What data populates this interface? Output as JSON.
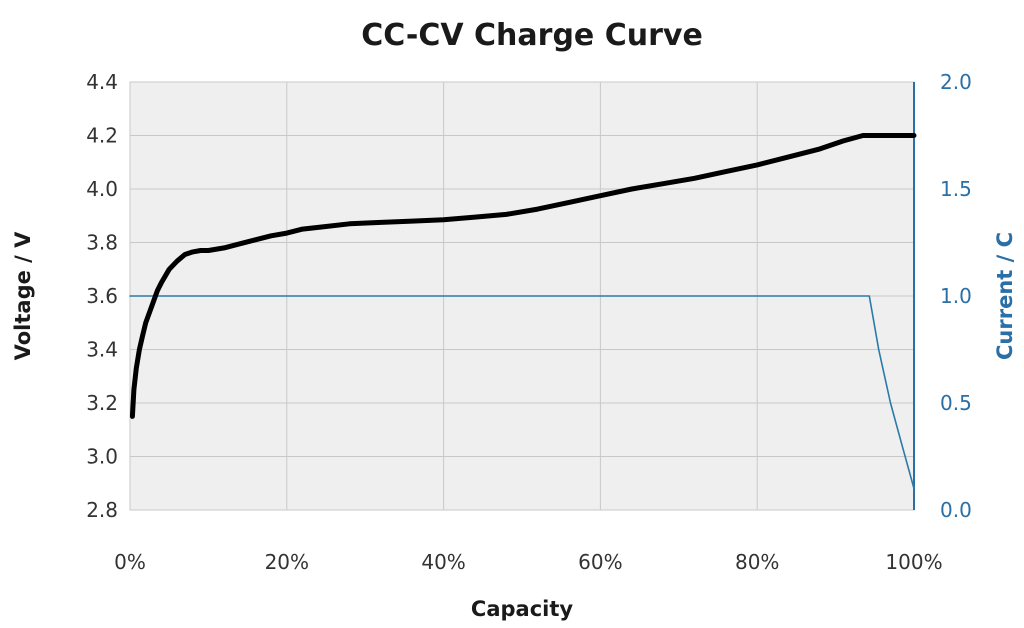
{
  "chart_data": {
    "type": "line",
    "title": "CC-CV Charge Curve",
    "xlabel": "Capacity",
    "ylabel": "Voltage / V",
    "y2label": "Current / C",
    "x_ticks": [
      "0%",
      "20%",
      "40%",
      "60%",
      "80%",
      "100%"
    ],
    "y_ticks": [
      "2.8",
      "3.0",
      "3.2",
      "3.4",
      "3.6",
      "3.8",
      "4.0",
      "4.2",
      "4.4"
    ],
    "y2_ticks": [
      "0.0",
      "0.5",
      "1.0",
      "1.5",
      "2.0"
    ],
    "xlim": [
      0,
      100
    ],
    "ylim": [
      2.8,
      4.4
    ],
    "y2lim": [
      0,
      2.0
    ],
    "grid": true,
    "colors": {
      "voltage": "#000000",
      "current": "#2a7aa8",
      "plot_bg": "#efefef",
      "grid": "#c8c8c8",
      "right_axis": "#2a6fa6"
    },
    "series": [
      {
        "axis": "left",
        "x": [
          0.3,
          0.5,
          0.8,
          1.2,
          1.6,
          2.0,
          2.5,
          3.0,
          3.5,
          4.0,
          5.0,
          6.0,
          7.0,
          8.0,
          9.0,
          10.0,
          12.0,
          14.0,
          16.0,
          18.0,
          20.0,
          22.0,
          25.0,
          28.0,
          32.0,
          36.0,
          40.0,
          44.0,
          48.0,
          52.0,
          56.0,
          60.0,
          64.0,
          68.0,
          72.0,
          76.0,
          80.0,
          84.0,
          88.0,
          91.0,
          93.5,
          95.0,
          97.0,
          100.0
        ],
        "y": [
          3.15,
          3.25,
          3.33,
          3.4,
          3.45,
          3.5,
          3.54,
          3.58,
          3.62,
          3.65,
          3.7,
          3.73,
          3.755,
          3.765,
          3.77,
          3.77,
          3.78,
          3.795,
          3.81,
          3.825,
          3.835,
          3.85,
          3.86,
          3.87,
          3.875,
          3.88,
          3.885,
          3.895,
          3.905,
          3.925,
          3.95,
          3.975,
          4.0,
          4.02,
          4.04,
          4.065,
          4.09,
          4.12,
          4.15,
          4.18,
          4.2,
          4.2,
          4.2,
          4.2
        ]
      },
      {
        "axis": "right",
        "x": [
          0,
          94.3,
          95.5,
          97.0,
          98.5,
          100.0
        ],
        "y": [
          1.0,
          1.0,
          0.75,
          0.5,
          0.3,
          0.1
        ]
      }
    ]
  }
}
